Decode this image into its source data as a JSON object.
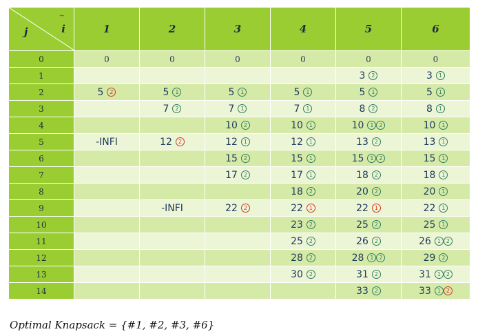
{
  "header": {
    "j_label": "j",
    "i_label": "i",
    "mark": "~",
    "columns": [
      "1",
      "2",
      "3",
      "4",
      "5",
      "6"
    ]
  },
  "colors": {
    "header_green": "#9acd32",
    "row_light": "#ecf5d6",
    "row_mid": "#d6eaa8",
    "text": "#1f3a5a",
    "circle_green": "#2e7d5b",
    "circle_red": "#d8331f"
  },
  "rows": [
    {
      "j": "0",
      "cells": [
        {
          "v": "0",
          "m": []
        },
        {
          "v": "0",
          "m": []
        },
        {
          "v": "0",
          "m": []
        },
        {
          "v": "0",
          "m": []
        },
        {
          "v": "0",
          "m": []
        },
        {
          "v": "0",
          "m": []
        }
      ]
    },
    {
      "j": "1",
      "cells": [
        {
          "v": "",
          "m": []
        },
        {
          "v": "",
          "m": []
        },
        {
          "v": "",
          "m": []
        },
        {
          "v": "",
          "m": []
        },
        {
          "v": "3",
          "m": [
            {
              "n": "2",
              "c": "g"
            }
          ]
        },
        {
          "v": "3",
          "m": [
            {
              "n": "1",
              "c": "g"
            }
          ]
        }
      ]
    },
    {
      "j": "2",
      "cells": [
        {
          "v": "5",
          "m": [
            {
              "n": "2",
              "c": "r"
            }
          ]
        },
        {
          "v": "5",
          "m": [
            {
              "n": "1",
              "c": "g"
            }
          ]
        },
        {
          "v": "5",
          "m": [
            {
              "n": "1",
              "c": "g"
            }
          ]
        },
        {
          "v": "5",
          "m": [
            {
              "n": "1",
              "c": "g"
            }
          ]
        },
        {
          "v": "5",
          "m": [
            {
              "n": "1",
              "c": "g"
            }
          ]
        },
        {
          "v": "5",
          "m": [
            {
              "n": "1",
              "c": "g"
            }
          ]
        }
      ]
    },
    {
      "j": "3",
      "cells": [
        {
          "v": "",
          "m": []
        },
        {
          "v": "7",
          "m": [
            {
              "n": "2",
              "c": "g"
            }
          ]
        },
        {
          "v": "7",
          "m": [
            {
              "n": "1",
              "c": "g"
            }
          ]
        },
        {
          "v": "7",
          "m": [
            {
              "n": "1",
              "c": "g"
            }
          ]
        },
        {
          "v": "8",
          "m": [
            {
              "n": "2",
              "c": "g"
            }
          ]
        },
        {
          "v": "8",
          "m": [
            {
              "n": "1",
              "c": "g"
            }
          ]
        }
      ]
    },
    {
      "j": "4",
      "cells": [
        {
          "v": "",
          "m": []
        },
        {
          "v": "",
          "m": []
        },
        {
          "v": "10",
          "m": [
            {
              "n": "2",
              "c": "g"
            }
          ]
        },
        {
          "v": "10",
          "m": [
            {
              "n": "1",
              "c": "g"
            }
          ]
        },
        {
          "v": "10",
          "m": [
            {
              "n": "1",
              "c": "g"
            },
            {
              "n": "2",
              "c": "g"
            }
          ]
        },
        {
          "v": "10",
          "m": [
            {
              "n": "1",
              "c": "g"
            }
          ]
        }
      ]
    },
    {
      "j": "5",
      "cells": [
        {
          "v": "-INFI",
          "m": []
        },
        {
          "v": "12",
          "m": [
            {
              "n": "2",
              "c": "r"
            }
          ]
        },
        {
          "v": "12",
          "m": [
            {
              "n": "1",
              "c": "g"
            }
          ]
        },
        {
          "v": "12",
          "m": [
            {
              "n": "1",
              "c": "g"
            }
          ]
        },
        {
          "v": "13",
          "m": [
            {
              "n": "2",
              "c": "g"
            }
          ]
        },
        {
          "v": "13",
          "m": [
            {
              "n": "1",
              "c": "g"
            }
          ]
        }
      ]
    },
    {
      "j": "6",
      "cells": [
        {
          "v": "",
          "m": []
        },
        {
          "v": "",
          "m": []
        },
        {
          "v": "15",
          "m": [
            {
              "n": "2",
              "c": "g"
            }
          ]
        },
        {
          "v": "15",
          "m": [
            {
              "n": "1",
              "c": "g"
            }
          ]
        },
        {
          "v": "15",
          "m": [
            {
              "n": "1",
              "c": "g"
            },
            {
              "n": "2",
              "c": "g"
            }
          ]
        },
        {
          "v": "15",
          "m": [
            {
              "n": "1",
              "c": "g"
            }
          ]
        }
      ]
    },
    {
      "j": "7",
      "cells": [
        {
          "v": "",
          "m": []
        },
        {
          "v": "",
          "m": []
        },
        {
          "v": "17",
          "m": [
            {
              "n": "2",
              "c": "g"
            }
          ]
        },
        {
          "v": "17",
          "m": [
            {
              "n": "1",
              "c": "g"
            }
          ]
        },
        {
          "v": "18",
          "m": [
            {
              "n": "2",
              "c": "g"
            }
          ]
        },
        {
          "v": "18",
          "m": [
            {
              "n": "1",
              "c": "g"
            }
          ]
        }
      ]
    },
    {
      "j": "8",
      "cells": [
        {
          "v": "",
          "m": []
        },
        {
          "v": "",
          "m": []
        },
        {
          "v": "",
          "m": []
        },
        {
          "v": "18",
          "m": [
            {
              "n": "2",
              "c": "g"
            }
          ]
        },
        {
          "v": "20",
          "m": [
            {
              "n": "2",
              "c": "g"
            }
          ]
        },
        {
          "v": "20",
          "m": [
            {
              "n": "1",
              "c": "g"
            }
          ]
        }
      ]
    },
    {
      "j": "9",
      "cells": [
        {
          "v": "",
          "m": []
        },
        {
          "v": "-INFI",
          "m": []
        },
        {
          "v": "22",
          "m": [
            {
              "n": "2",
              "c": "r"
            }
          ]
        },
        {
          "v": "22",
          "m": [
            {
              "n": "1",
              "c": "r"
            }
          ]
        },
        {
          "v": "22",
          "m": [
            {
              "n": "1",
              "c": "r"
            }
          ]
        },
        {
          "v": "22",
          "m": [
            {
              "n": "1",
              "c": "g"
            }
          ]
        }
      ]
    },
    {
      "j": "10",
      "cells": [
        {
          "v": "",
          "m": []
        },
        {
          "v": "",
          "m": []
        },
        {
          "v": "",
          "m": []
        },
        {
          "v": "23",
          "m": [
            {
              "n": "2",
              "c": "g"
            }
          ]
        },
        {
          "v": "25",
          "m": [
            {
              "n": "2",
              "c": "g"
            }
          ]
        },
        {
          "v": "25",
          "m": [
            {
              "n": "1",
              "c": "g"
            }
          ]
        }
      ]
    },
    {
      "j": "11",
      "cells": [
        {
          "v": "",
          "m": []
        },
        {
          "v": "",
          "m": []
        },
        {
          "v": "",
          "m": []
        },
        {
          "v": "25",
          "m": [
            {
              "n": "2",
              "c": "g"
            }
          ]
        },
        {
          "v": "26",
          "m": [
            {
              "n": "2",
              "c": "g"
            }
          ]
        },
        {
          "v": "26",
          "m": [
            {
              "n": "1",
              "c": "g"
            },
            {
              "n": "2",
              "c": "g"
            }
          ]
        }
      ]
    },
    {
      "j": "12",
      "cells": [
        {
          "v": "",
          "m": []
        },
        {
          "v": "",
          "m": []
        },
        {
          "v": "",
          "m": []
        },
        {
          "v": "28",
          "m": [
            {
              "n": "2",
              "c": "g"
            }
          ]
        },
        {
          "v": "28",
          "m": [
            {
              "n": "1",
              "c": "g"
            },
            {
              "n": "2",
              "c": "g"
            }
          ]
        },
        {
          "v": "29",
          "m": [
            {
              "n": "2",
              "c": "g"
            }
          ]
        }
      ]
    },
    {
      "j": "13",
      "cells": [
        {
          "v": "",
          "m": []
        },
        {
          "v": "",
          "m": []
        },
        {
          "v": "",
          "m": []
        },
        {
          "v": "30",
          "m": [
            {
              "n": "2",
              "c": "g"
            }
          ]
        },
        {
          "v": "31",
          "m": [
            {
              "n": "2",
              "c": "g"
            }
          ]
        },
        {
          "v": "31",
          "m": [
            {
              "n": "1",
              "c": "g"
            },
            {
              "n": "2",
              "c": "g"
            }
          ]
        }
      ]
    },
    {
      "j": "14",
      "cells": [
        {
          "v": "",
          "m": []
        },
        {
          "v": "",
          "m": []
        },
        {
          "v": "",
          "m": []
        },
        {
          "v": "",
          "m": []
        },
        {
          "v": "33",
          "m": [
            {
              "n": "2",
              "c": "g"
            }
          ]
        },
        {
          "v": "33",
          "m": [
            {
              "n": "1",
              "c": "g"
            },
            {
              "n": "2",
              "c": "r"
            }
          ]
        }
      ]
    }
  ],
  "caption": "Optimal Knapsack = {#1, #2, #3, #6}"
}
